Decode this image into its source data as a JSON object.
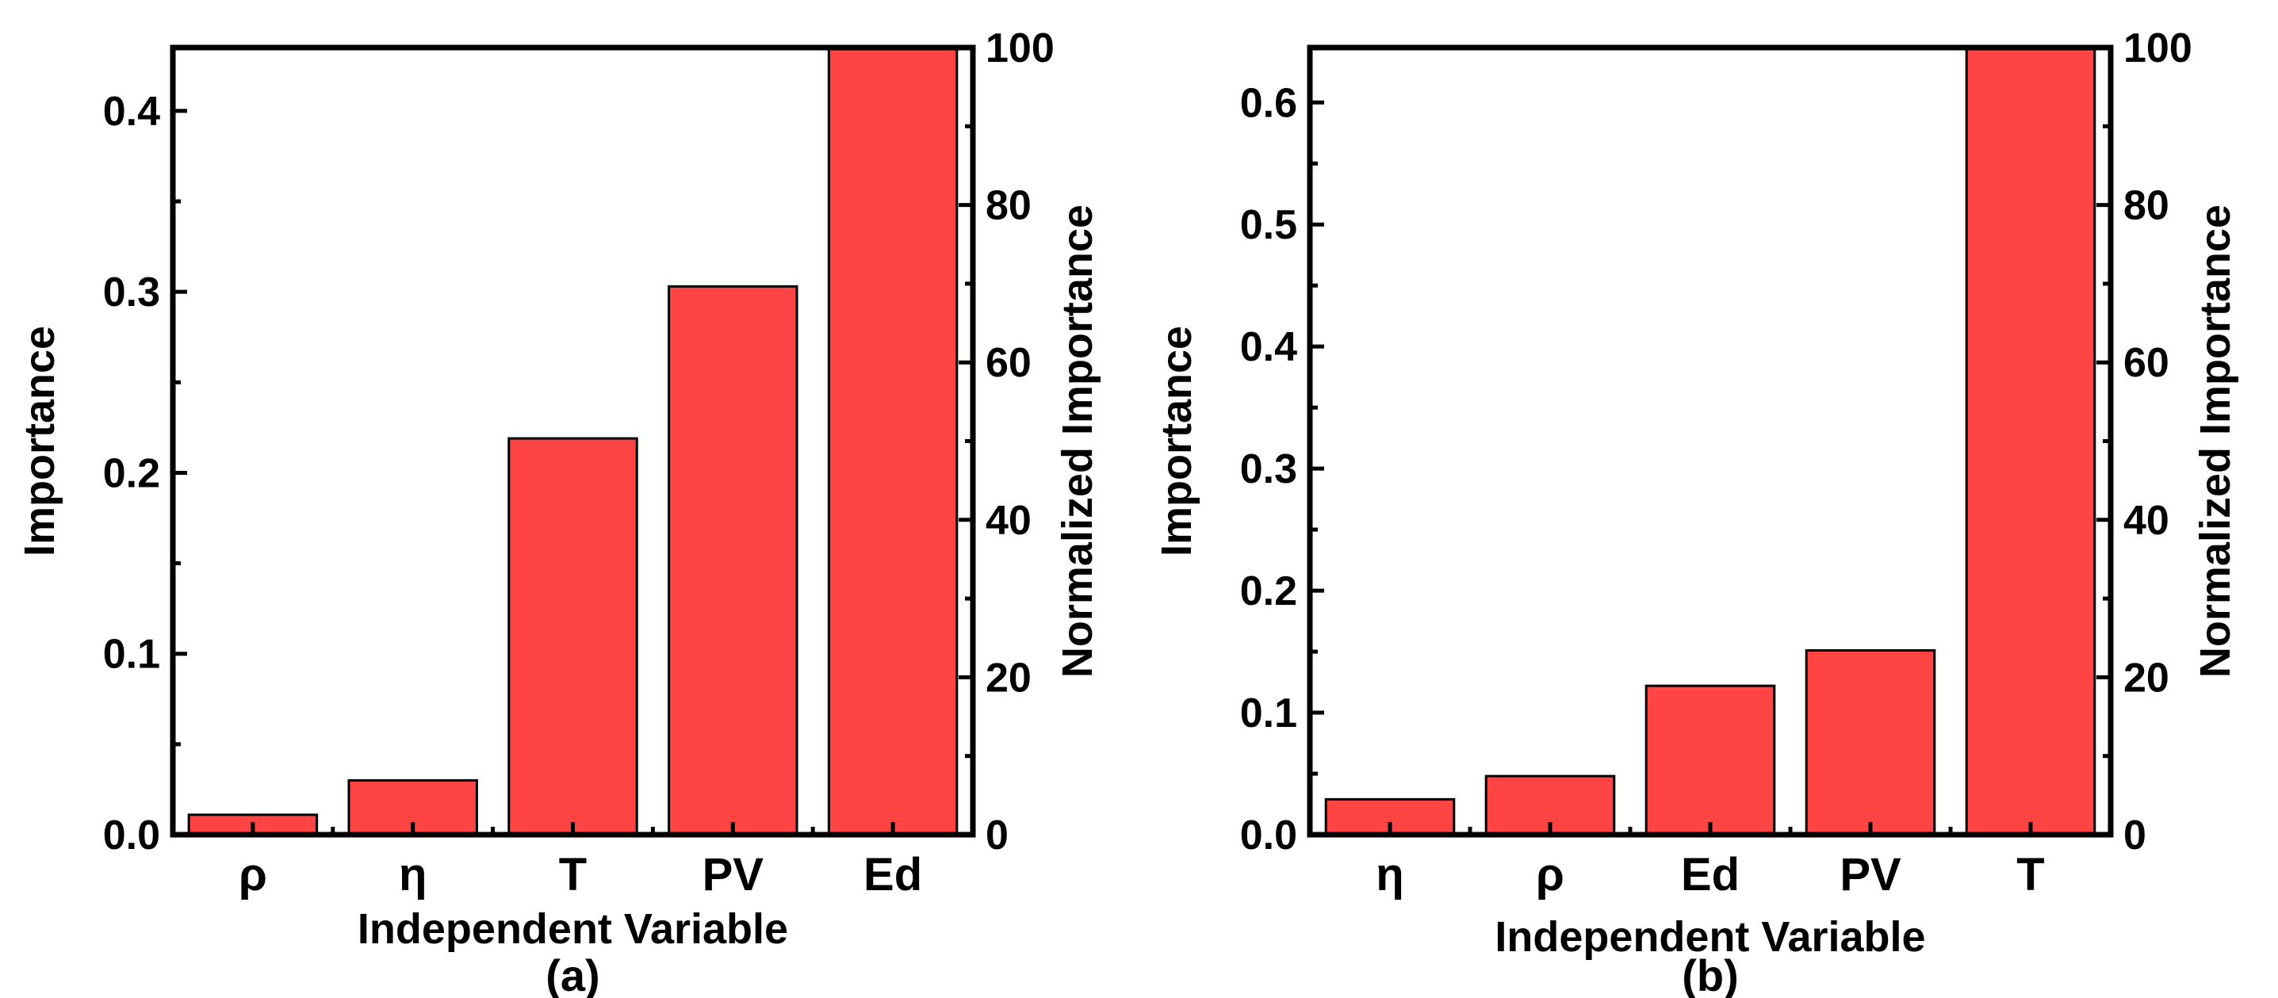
{
  "chart_data": [
    {
      "type": "bar",
      "panel_label": "(a)",
      "categories": [
        "ρ",
        "η",
        "T",
        "PV",
        "Ed"
      ],
      "values": [
        0.011,
        0.03,
        0.219,
        0.303,
        0.435
      ],
      "xlabel": "Independent Variable",
      "ylabel": "Importance",
      "ylabel_right": "Normalized Importance",
      "ylim": [
        0,
        0.435
      ],
      "ylim_right": [
        0,
        100
      ],
      "yticks": [
        "0.0",
        "0.1",
        "0.2",
        "0.3",
        "0.4"
      ],
      "yticks_right": [
        "0",
        "20",
        "40",
        "60",
        "80",
        "100"
      ],
      "bar_color": "#ff4444",
      "grid": false,
      "legend": false
    },
    {
      "type": "bar",
      "panel_label": "(b)",
      "categories": [
        "η",
        "ρ",
        "Ed",
        "PV",
        "T"
      ],
      "values": [
        0.029,
        0.048,
        0.122,
        0.151,
        0.645
      ],
      "xlabel": "Independent Variable",
      "ylabel": "Importance",
      "ylabel_right": "Normalized Importance",
      "ylim": [
        0,
        0.645
      ],
      "ylim_right": [
        0,
        100
      ],
      "yticks": [
        "0.0",
        "0.1",
        "0.2",
        "0.3",
        "0.4",
        "0.5",
        "0.6"
      ],
      "yticks_right": [
        "0",
        "20",
        "40",
        "60",
        "80",
        "100"
      ],
      "bar_color": "#ff4444",
      "grid": false,
      "legend": false
    }
  ]
}
